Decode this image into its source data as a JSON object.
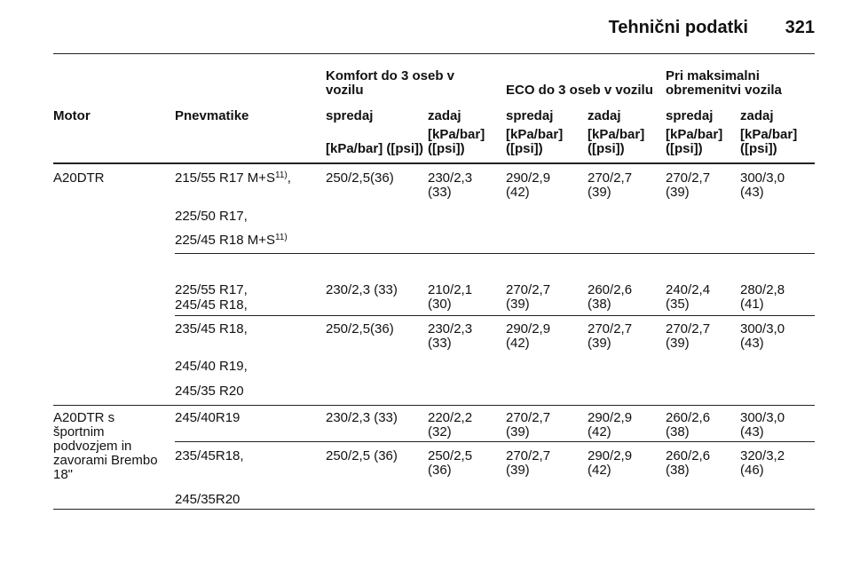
{
  "header": {
    "title": "Tehnični podatki",
    "page": "321"
  },
  "table": {
    "groups": [
      "Komfort do 3 oseb v vozilu",
      "ECO do 3 oseb v vozilu",
      "Pri maksimalni obremenitvi vozila"
    ],
    "columns": [
      "Motor",
      "Pnevmatike",
      "spredaj",
      "zadaj",
      "spredaj",
      "zadaj",
      "spredaj",
      "zadaj"
    ],
    "units": [
      "[kPa/bar] ([psi])",
      "[kPa/bar] ([psi])",
      "[kPa/bar] ([psi])",
      "[kPa/bar] ([psi])",
      "[kPa/bar] ([psi])",
      "[kPa/bar] ([psi])"
    ],
    "rows": [
      {
        "motor": "A20DTR",
        "tyres": [
          {
            "text": "215/55 R17 M+S",
            "note": "11)",
            "after": ","
          },
          {
            "text": "225/50 R17,"
          },
          {
            "text": "225/45 R18 M+S",
            "note": "11)"
          }
        ],
        "values": [
          "250/2,5(36)",
          "230/2,3 (33)",
          "290/2,9 (42)",
          "270/2,7 (39)",
          "270/2,7 (39)",
          "300/3,0 (43)"
        ]
      },
      {
        "tyres": [
          {
            "text": "225/55 R17,"
          },
          {
            "text": "245/45 R18,"
          }
        ],
        "values": [
          "230/2,3 (33)",
          "210/2,1 (30)",
          "270/2,7 (39)",
          "260/2,6 (38)",
          "240/2,4 (35)",
          "280/2,8 (41)"
        ]
      },
      {
        "tyres": [
          {
            "text": "235/45 R18,"
          },
          {
            "text": "245/40 R19,"
          },
          {
            "text": "245/35 R20"
          }
        ],
        "values": [
          "250/2,5(36)",
          "230/2,3 (33)",
          "290/2,9 (42)",
          "270/2,7 (39)",
          "270/2,7 (39)",
          "300/3,0 (43)"
        ]
      },
      {
        "motor": "A20DTR s športnim podvozjem in zavorami Brembo 18\"",
        "tyres": [
          {
            "text": "245/40R19"
          }
        ],
        "values": [
          "230/2,3 (33)",
          "220/2,2 (32)",
          "270/2,7 (39)",
          "290/2,9 (42)",
          "260/2,6 (38)",
          "300/3,0 (43)"
        ]
      },
      {
        "tyres": [
          {
            "text": "235/45R18,"
          },
          {
            "text": "245/35R20"
          }
        ],
        "values": [
          "250/2,5 (36)",
          "250/2,5 (36)",
          "270/2,7 (39)",
          "290/2,9 (42)",
          "260/2,6 (38)",
          "320/3,2 (46)"
        ]
      }
    ]
  }
}
